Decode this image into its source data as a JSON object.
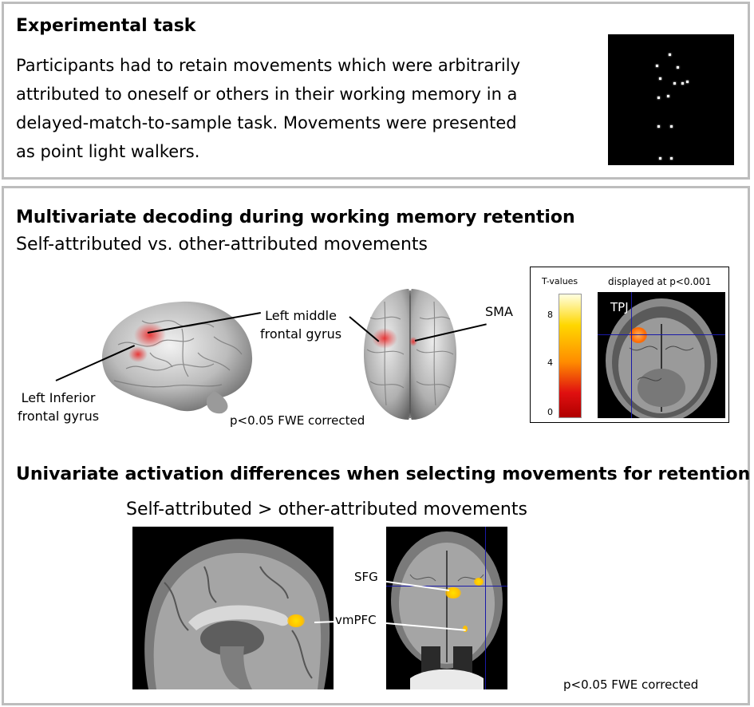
{
  "experimental": {
    "title": "Experimental task",
    "lines": [
      "Participants had to retain movements which were arbitrarily",
      "attributed to oneself or others in their working memory in a",
      "delayed-match-to-sample task. Movements were presented",
      "as point light walkers."
    ]
  },
  "multivariate": {
    "title": "Multivariate decoding during working memory retention",
    "subtitle": "Self-attributed vs. other-attributed movements",
    "labels": {
      "left_middle_line1": "Left middle",
      "left_middle_line2": "frontal gyrus",
      "left_inferior_line1": "Left Inferior",
      "left_inferior_line2": "frontal gyrus",
      "sma": "SMA",
      "threshold": "p<0.05 FWE corrected"
    },
    "colorbar": {
      "title": "T-values",
      "ticks": [
        "8",
        "4",
        "0"
      ],
      "display_note": "displayed  at p<0.001",
      "roi": "TPJ",
      "colors": [
        "#ffffe0",
        "#ffd700",
        "#ff8c00",
        "#e01010",
        "#b00000"
      ]
    }
  },
  "univariate": {
    "title": "Univariate activation differences when selecting movements for retention",
    "subtitle": "Self-attributed > other-attributed movements",
    "labels": {
      "sfg": "SFG",
      "vmpfc": "vmPFC",
      "threshold": "p<0.05 FWE corrected"
    }
  }
}
